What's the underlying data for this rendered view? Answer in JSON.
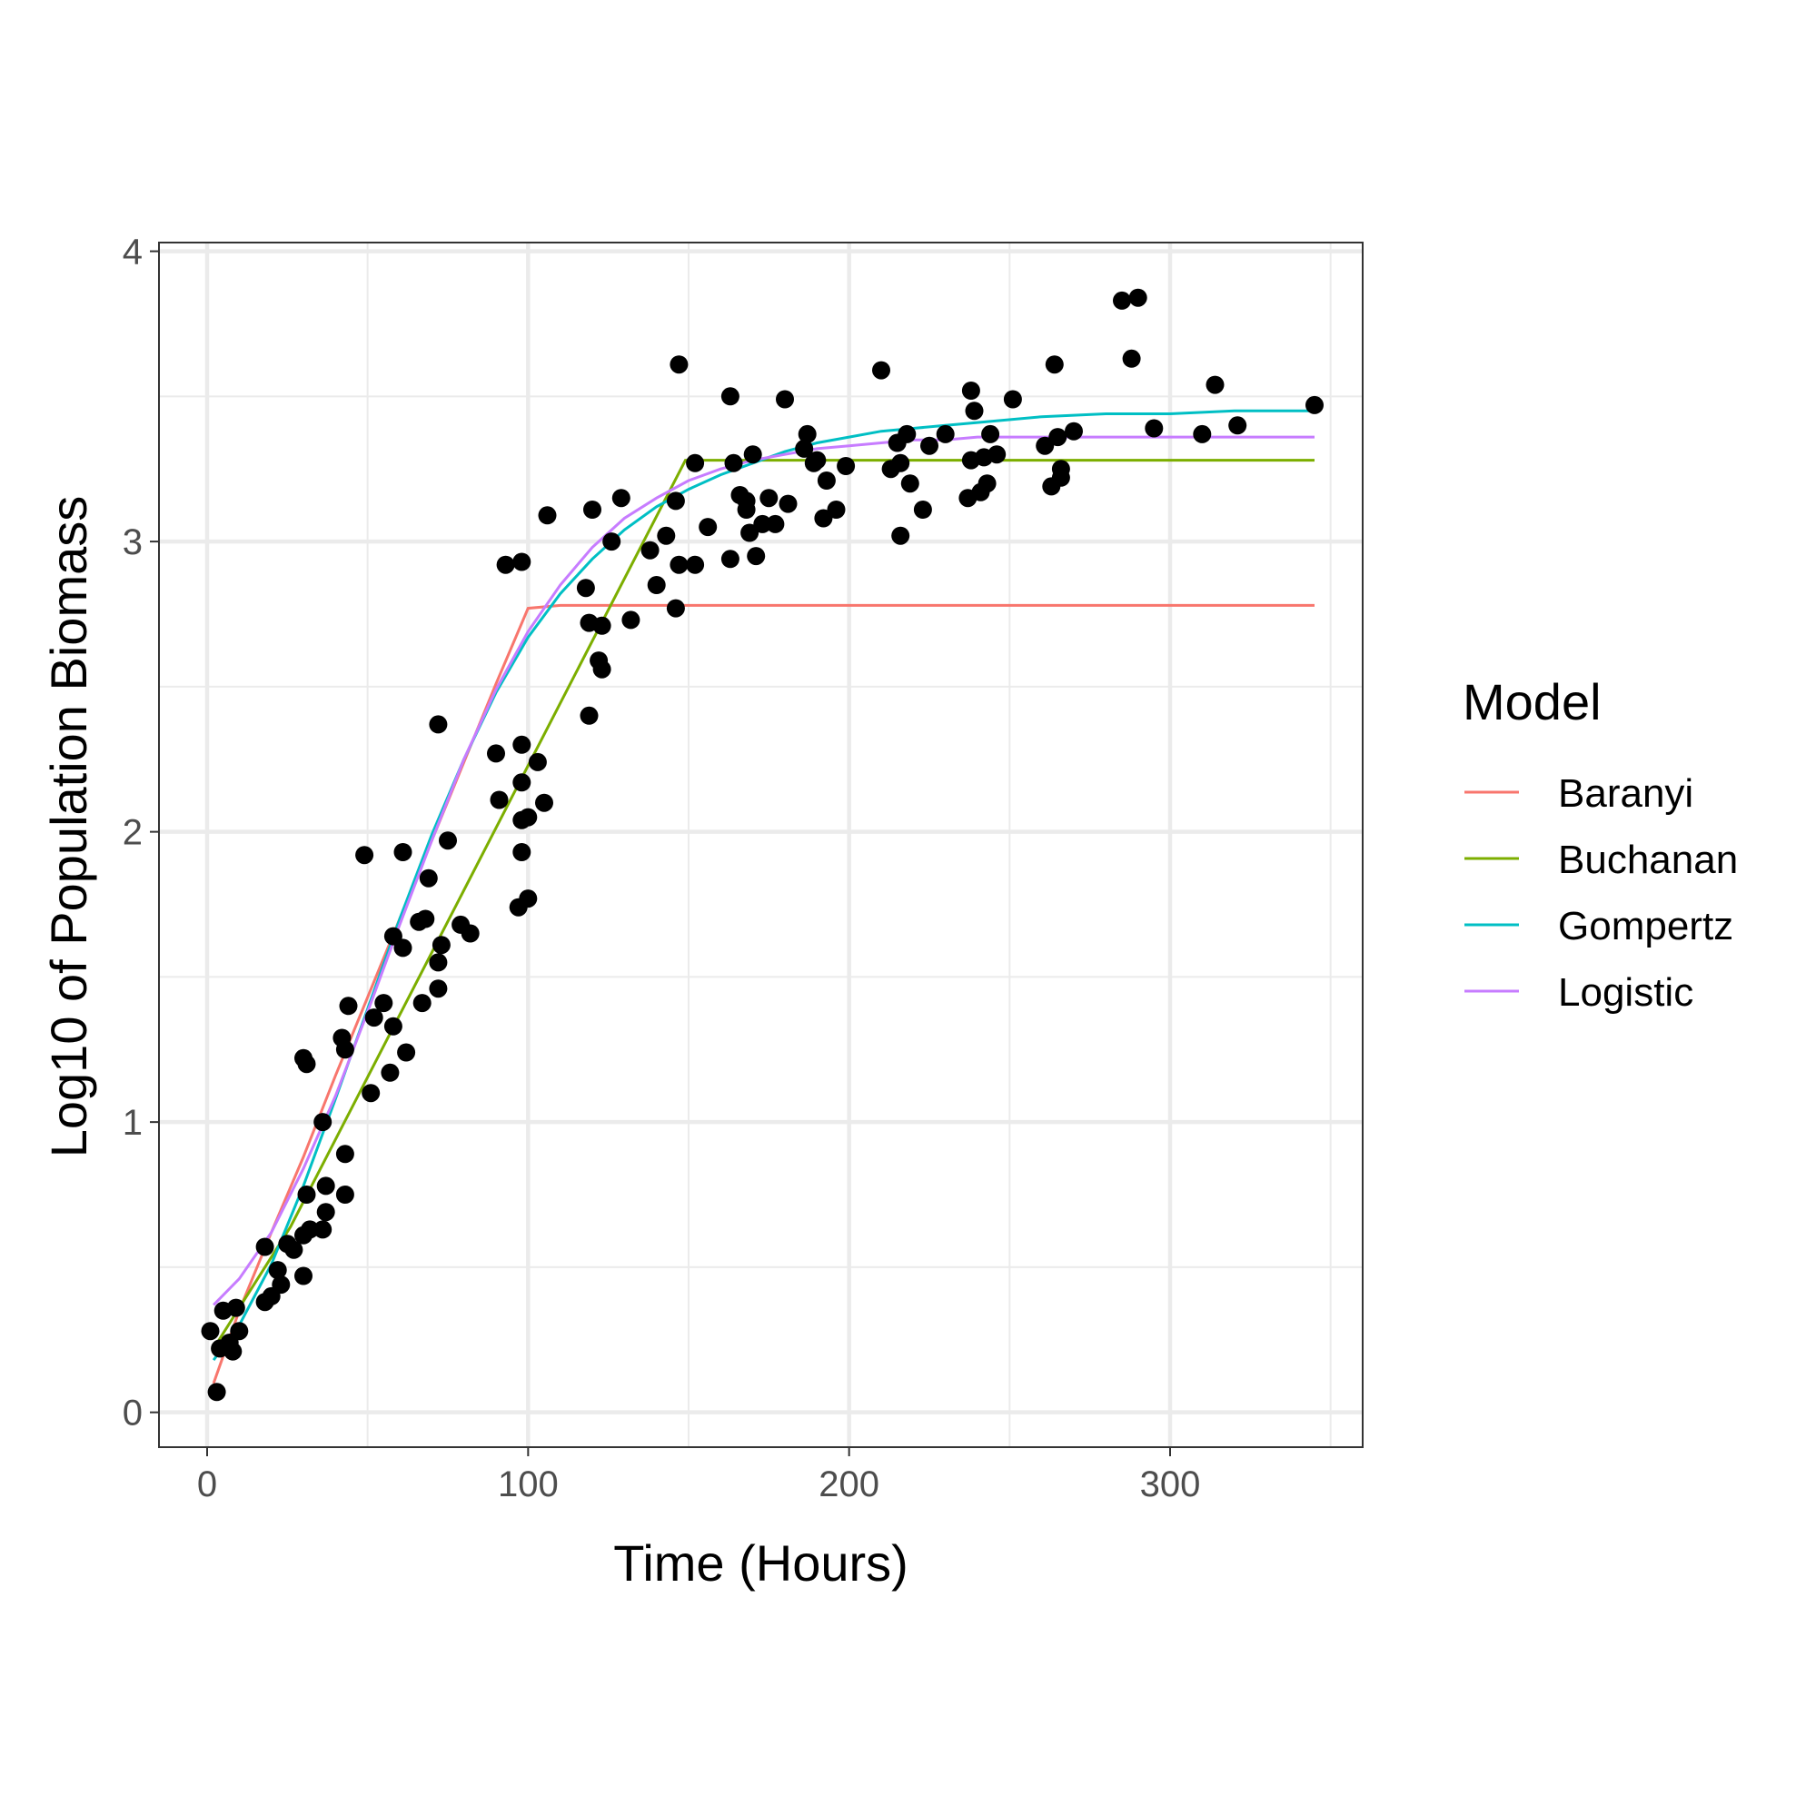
{
  "chart_data": {
    "type": "scatter",
    "title": "",
    "xlabel": "Time (Hours)",
    "ylabel": "Log10 of Population Biomass",
    "xlim": [
      -15,
      360
    ],
    "ylim": [
      -0.12,
      4.03
    ],
    "x_ticks": [
      0,
      100,
      200,
      300
    ],
    "y_ticks": [
      0,
      1,
      2,
      3,
      4
    ],
    "x_tick_labels": [
      "0",
      "100",
      "200",
      "300"
    ],
    "y_tick_labels": [
      "0",
      "1",
      "2",
      "3",
      "4"
    ],
    "grid": true,
    "legend": {
      "title": "Model",
      "position": "right"
    },
    "points": [
      [
        1,
        0.28
      ],
      [
        3,
        0.07
      ],
      [
        4,
        0.22
      ],
      [
        5,
        0.35
      ],
      [
        7,
        0.24
      ],
      [
        8,
        0.21
      ],
      [
        9,
        0.36
      ],
      [
        10,
        0.28
      ],
      [
        18,
        0.57
      ],
      [
        18,
        0.38
      ],
      [
        20,
        0.4
      ],
      [
        22,
        0.49
      ],
      [
        23,
        0.44
      ],
      [
        25,
        0.58
      ],
      [
        27,
        0.56
      ],
      [
        30,
        0.61
      ],
      [
        30,
        0.47
      ],
      [
        30,
        1.22
      ],
      [
        31,
        1.2
      ],
      [
        31,
        0.75
      ],
      [
        32,
        0.63
      ],
      [
        36,
        1.0
      ],
      [
        36,
        0.63
      ],
      [
        37,
        0.78
      ],
      [
        37,
        0.69
      ],
      [
        42,
        1.29
      ],
      [
        43,
        0.89
      ],
      [
        43,
        0.75
      ],
      [
        43,
        1.25
      ],
      [
        44,
        1.4
      ],
      [
        49,
        1.92
      ],
      [
        51,
        1.1
      ],
      [
        52,
        1.36
      ],
      [
        55,
        1.41
      ],
      [
        57,
        1.17
      ],
      [
        58,
        1.64
      ],
      [
        58,
        1.33
      ],
      [
        61,
        1.93
      ],
      [
        61,
        1.6
      ],
      [
        62,
        1.24
      ],
      [
        66,
        1.69
      ],
      [
        67,
        1.41
      ],
      [
        68,
        1.7
      ],
      [
        69,
        1.84
      ],
      [
        72,
        2.37
      ],
      [
        72,
        1.55
      ],
      [
        72,
        1.46
      ],
      [
        73,
        1.61
      ],
      [
        75,
        1.97
      ],
      [
        79,
        1.68
      ],
      [
        82,
        1.65
      ],
      [
        90,
        2.27
      ],
      [
        91,
        2.11
      ],
      [
        93,
        2.92
      ],
      [
        97,
        1.74
      ],
      [
        98,
        2.93
      ],
      [
        98,
        2.3
      ],
      [
        98,
        1.93
      ],
      [
        98,
        2.04
      ],
      [
        98,
        2.17
      ],
      [
        100,
        1.77
      ],
      [
        100,
        2.05
      ],
      [
        103,
        2.24
      ],
      [
        105,
        2.1
      ],
      [
        106,
        3.09
      ],
      [
        118,
        2.84
      ],
      [
        119,
        2.72
      ],
      [
        119,
        2.4
      ],
      [
        120,
        3.11
      ],
      [
        122,
        2.59
      ],
      [
        123,
        2.56
      ],
      [
        123,
        2.71
      ],
      [
        126,
        3.0
      ],
      [
        129,
        3.15
      ],
      [
        132,
        2.73
      ],
      [
        138,
        2.97
      ],
      [
        140,
        2.85
      ],
      [
        143,
        3.02
      ],
      [
        146,
        3.14
      ],
      [
        146,
        2.77
      ],
      [
        147,
        2.92
      ],
      [
        147,
        3.61
      ],
      [
        152,
        3.27
      ],
      [
        152,
        2.92
      ],
      [
        156,
        3.05
      ],
      [
        163,
        3.5
      ],
      [
        163,
        2.94
      ],
      [
        164,
        3.27
      ],
      [
        166,
        3.16
      ],
      [
        168,
        3.14
      ],
      [
        168,
        3.11
      ],
      [
        169,
        3.03
      ],
      [
        170,
        3.3
      ],
      [
        171,
        2.95
      ],
      [
        173,
        3.06
      ],
      [
        175,
        3.15
      ],
      [
        177,
        3.06
      ],
      [
        180,
        3.49
      ],
      [
        181,
        3.13
      ],
      [
        186,
        3.32
      ],
      [
        187,
        3.37
      ],
      [
        189,
        3.27
      ],
      [
        190,
        3.28
      ],
      [
        192,
        3.08
      ],
      [
        193,
        3.21
      ],
      [
        196,
        3.11
      ],
      [
        199,
        3.26
      ],
      [
        210,
        3.59
      ],
      [
        213,
        3.25
      ],
      [
        215,
        3.34
      ],
      [
        216,
        3.02
      ],
      [
        216,
        3.27
      ],
      [
        218,
        3.37
      ],
      [
        219,
        3.2
      ],
      [
        223,
        3.11
      ],
      [
        225,
        3.33
      ],
      [
        230,
        3.37
      ],
      [
        237,
        3.15
      ],
      [
        238,
        3.52
      ],
      [
        238,
        3.28
      ],
      [
        239,
        3.45
      ],
      [
        241,
        3.17
      ],
      [
        242,
        3.29
      ],
      [
        243,
        3.2
      ],
      [
        244,
        3.37
      ],
      [
        246,
        3.3
      ],
      [
        251,
        3.49
      ],
      [
        261,
        3.33
      ],
      [
        263,
        3.19
      ],
      [
        264,
        3.61
      ],
      [
        265,
        3.36
      ],
      [
        266,
        3.22
      ],
      [
        266,
        3.25
      ],
      [
        270,
        3.38
      ],
      [
        285,
        3.83
      ],
      [
        288,
        3.63
      ],
      [
        290,
        3.84
      ],
      [
        295,
        3.39
      ],
      [
        310,
        3.37
      ],
      [
        314,
        3.54
      ],
      [
        321,
        3.4
      ],
      [
        345,
        3.47
      ]
    ],
    "series": [
      {
        "name": "Baranyi",
        "color": "#F8766D",
        "x": [
          2,
          10,
          20,
          30,
          40,
          50,
          60,
          70,
          80,
          90,
          100,
          110,
          120,
          130,
          140,
          150,
          160,
          170,
          180,
          190,
          200,
          210,
          220,
          230,
          240,
          260,
          280,
          300,
          320,
          345
        ],
        "y": [
          0.1,
          0.35,
          0.62,
          0.88,
          1.16,
          1.43,
          1.7,
          1.97,
          2.24,
          2.51,
          2.77,
          2.78,
          2.78,
          2.78,
          2.78,
          2.78,
          2.78,
          2.78,
          2.78,
          2.78,
          2.78,
          2.78,
          2.78,
          2.78,
          2.78,
          2.78,
          2.78,
          2.78,
          2.78,
          2.78
        ]
      },
      {
        "name": "Buchanan",
        "color": "#7CAE00",
        "x": [
          2,
          26,
          149,
          345
        ],
        "y": [
          0.22,
          0.64,
          3.28,
          3.28
        ]
      },
      {
        "name": "Gompertz",
        "color": "#00BFC4",
        "x": [
          2,
          10,
          20,
          30,
          40,
          50,
          60,
          70,
          80,
          90,
          100,
          110,
          120,
          130,
          140,
          150,
          160,
          170,
          180,
          190,
          200,
          210,
          220,
          230,
          240,
          260,
          280,
          300,
          320,
          345
        ],
        "y": [
          0.18,
          0.3,
          0.51,
          0.78,
          1.08,
          1.39,
          1.7,
          1.99,
          2.25,
          2.48,
          2.67,
          2.82,
          2.94,
          3.04,
          3.12,
          3.18,
          3.23,
          3.27,
          3.31,
          3.34,
          3.36,
          3.38,
          3.39,
          3.4,
          3.41,
          3.43,
          3.44,
          3.44,
          3.45,
          3.45
        ]
      },
      {
        "name": "Logistic",
        "color": "#C77CFF",
        "x": [
          2,
          10,
          20,
          30,
          40,
          50,
          60,
          70,
          80,
          90,
          100,
          110,
          120,
          130,
          140,
          150,
          160,
          170,
          180,
          190,
          200,
          210,
          220,
          230,
          240,
          260,
          280,
          300,
          320,
          345
        ],
        "y": [
          0.37,
          0.46,
          0.62,
          0.84,
          1.09,
          1.38,
          1.68,
          1.97,
          2.25,
          2.49,
          2.69,
          2.85,
          2.98,
          3.08,
          3.15,
          3.21,
          3.25,
          3.28,
          3.3,
          3.32,
          3.33,
          3.34,
          3.35,
          3.35,
          3.36,
          3.36,
          3.36,
          3.36,
          3.36,
          3.36
        ]
      }
    ]
  }
}
